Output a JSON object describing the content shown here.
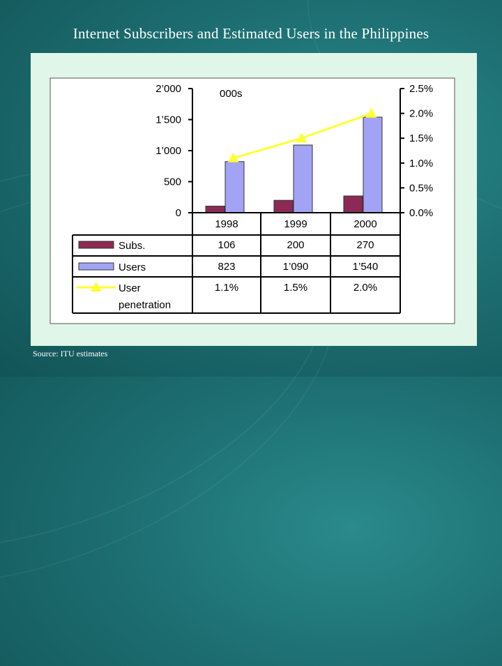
{
  "title": "Internet Subscribers and Estimated Users in the Philippines",
  "source": "Source: ITU estimates",
  "chart_data": {
    "type": "bar",
    "unit_label": "000s",
    "categories": [
      "1998",
      "1999",
      "2000"
    ],
    "series": [
      {
        "name": "Subs.",
        "values": [
          106,
          200,
          270
        ],
        "labels": [
          "106",
          "200",
          "270"
        ],
        "color": "#8c2a55",
        "axis": "left",
        "kind": "bar"
      },
      {
        "name": "Users",
        "values": [
          823,
          1090,
          1540
        ],
        "labels": [
          "823",
          "1’090",
          "1’540"
        ],
        "color": "#a3a3f5",
        "axis": "left",
        "kind": "bar"
      },
      {
        "name": "User penetration",
        "name_lines": [
          "User",
          "penetration"
        ],
        "values": [
          1.1,
          1.5,
          2.0
        ],
        "labels": [
          "1.1%",
          "1.5%",
          "2.0%"
        ],
        "color": "#ffff33",
        "axis": "right",
        "kind": "line"
      }
    ],
    "ylim": [
      0,
      2000
    ],
    "y2lim": [
      0,
      2.5
    ],
    "yticks": [
      0,
      500,
      1000,
      1500,
      2000
    ],
    "ytick_labels": [
      "0",
      "500",
      "1’000",
      "1’500",
      "2’000"
    ],
    "y2ticks": [
      0,
      0.5,
      1.0,
      1.5,
      2.0,
      2.5
    ],
    "y2tick_labels": [
      "0.0%",
      "0.5%",
      "1.0%",
      "1.5%",
      "2.0%",
      "2.5%"
    ],
    "grid": false,
    "legend": "data-table"
  }
}
